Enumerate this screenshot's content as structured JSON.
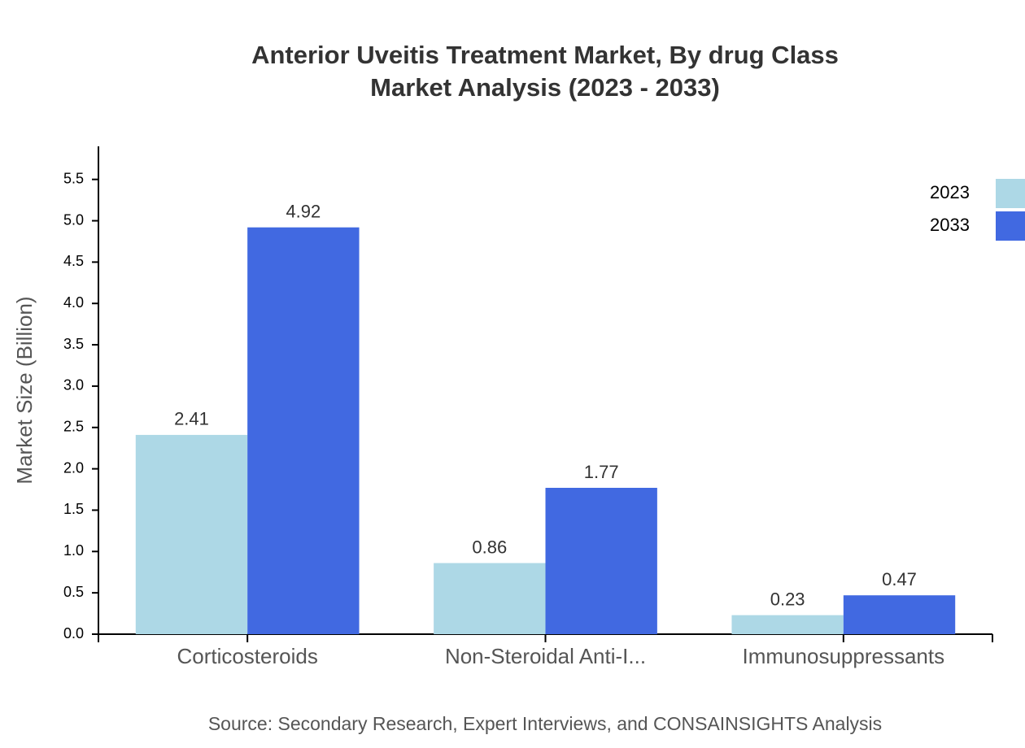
{
  "chart_data": {
    "type": "bar",
    "title": "Anterior Uveitis Treatment Market, By drug Class",
    "subtitle": "Market Analysis (2023 - 2033)",
    "y_label": "Market Size (Billion)",
    "source": "Source: Secondary Research, Expert Interviews, and CONSAINSIGHTS Analysis",
    "categories": [
      "Corticosteroids",
      "Non-Steroidal Anti-I...",
      "Immunosuppressants"
    ],
    "series": [
      {
        "name": "2023",
        "color": "#add8e6",
        "values": [
          2.41,
          0.86,
          0.23
        ]
      },
      {
        "name": "2033",
        "color": "#4169e1",
        "values": [
          4.92,
          1.77,
          0.47
        ]
      }
    ],
    "ylim": [
      0,
      5.9
    ],
    "yticks": [
      {
        "value": 0,
        "label": "0.0"
      },
      0.5,
      {
        "value": 1,
        "label": "1.0"
      },
      1.5,
      {
        "value": 2,
        "label": "2.0"
      },
      2.5,
      {
        "value": 3,
        "label": "3.0"
      },
      3.5,
      {
        "value": 4,
        "label": "4.0"
      },
      4.5,
      {
        "value": 5,
        "label": "5.0"
      },
      5.5
    ],
    "grid": false,
    "legend": "top-right"
  }
}
